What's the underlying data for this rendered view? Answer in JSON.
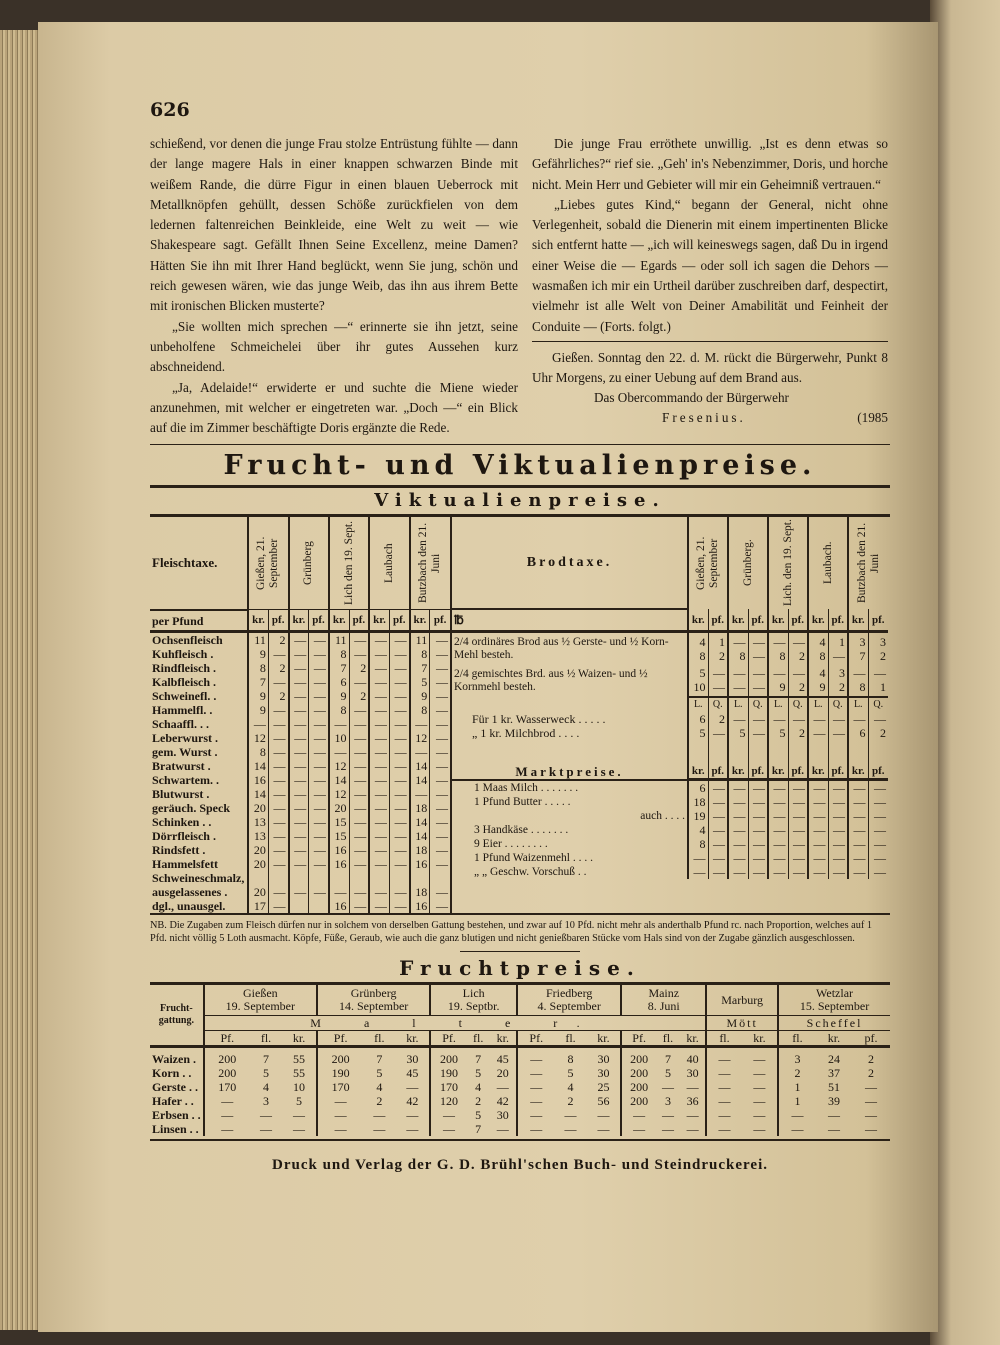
{
  "page_number": "626",
  "story": {
    "left_paragraphs": [
      "schießend, vor denen die junge Frau stolze Entrüstung fühlte — dann der lange magere Hals in einer knappen schwarzen Binde mit weißem Rande, die dürre Figur in einen blauen Ueberrock mit Metallknöpfen gehüllt, dessen Schöße zurückfielen von dem ledernen faltenreichen Beinkleide, eine Welt zu weit — wie Shakespeare sagt. Gefällt Ihnen Seine Excellenz, meine Damen? Hätten Sie ihn mit Ihrer Hand beglückt, wenn Sie jung, schön und reich gewesen wären, wie das junge Weib, das ihn aus ihrem Bette mit ironischen Blicken musterte?",
      "„Sie wollten mich sprechen —“ erinnerte sie ihn jetzt, seine unbeholfene Schmeichelei über ihr gutes Aussehen kurz abschneidend.",
      "„Ja, Adelaide!“ erwiderte er und suchte die Miene wieder anzunehmen, mit welcher er eingetreten war. „Doch —“ ein Blick auf die im Zimmer beschäftigte Doris ergänzte die Rede."
    ],
    "right_paragraphs": [
      "Die junge Frau erröthete unwillig. „Ist es denn etwas so Gefährliches?“ rief sie. „Geh' in's Nebenzimmer, Doris, und horche nicht. Mein Herr und Gebieter will mir ein Geheimniß vertrauen.“",
      "„Liebes gutes Kind,“ begann der General, nicht ohne Verlegenheit, sobald die Dienerin mit einem impertinenten Blicke sich entfernt hatte — „ich will keineswegs sagen, daß Du in irgend einer Weise die — Egards — oder soll ich sagen die Dehors — wasmaßen ich mir ein Urtheil darüber zuschreiben darf, despectirt, vielmehr ist alle Welt von Deiner Amabilität und Feinheit der Conduite — (Forts. folgt.)"
    ]
  },
  "notice": {
    "text": "Gießen. Sonntag den 22. d. M. rückt die Bürgerwehr, Punkt 8 Uhr Morgens, zu einer Uebung auf dem Brand aus.",
    "signature_line": "Das Obercommando der Bürgerwehr",
    "name": "Fresenius.",
    "number": "(1985"
  },
  "heading": "Frucht- und Viktualienpreise.",
  "subheading": "Viktualienpreise.",
  "fleisch": {
    "title": "Fleischtaxe.",
    "unit": "per Pfund",
    "places": [
      "Gießen, 21. September",
      "Grünberg",
      "Lich den 19. Sept.",
      "Laubach",
      "Butzbach den 21. Juni"
    ],
    "subcols": [
      "kr.",
      "pf."
    ],
    "rows": [
      {
        "label": "Ochsenfleisch",
        "v": [
          "11",
          "2",
          "—",
          "—",
          "11",
          "—",
          "—",
          "—",
          "11",
          "—"
        ]
      },
      {
        "label": "Kuhfleisch .",
        "v": [
          "9",
          "—",
          "—",
          "—",
          "8",
          "—",
          "—",
          "—",
          "8",
          "—"
        ]
      },
      {
        "label": "Rindfleisch .",
        "v": [
          "8",
          "2",
          "—",
          "—",
          "7",
          "2",
          "—",
          "—",
          "7",
          "—"
        ]
      },
      {
        "label": "Kalbfleisch .",
        "v": [
          "7",
          "—",
          "—",
          "—",
          "6",
          "—",
          "—",
          "—",
          "5",
          "—"
        ]
      },
      {
        "label": "Schweinefl. .",
        "v": [
          "9",
          "2",
          "—",
          "—",
          "9",
          "2",
          "—",
          "—",
          "9",
          "—"
        ]
      },
      {
        "label": "Hammelfl. .",
        "v": [
          "9",
          "—",
          "—",
          "—",
          "8",
          "—",
          "—",
          "—",
          "8",
          "—"
        ]
      },
      {
        "label": "Schaaffl. . .",
        "v": [
          "—",
          "—",
          "—",
          "—",
          "—",
          "—",
          "—",
          "—",
          "—",
          "—"
        ]
      },
      {
        "label": "Leberwurst .",
        "v": [
          "12",
          "—",
          "—",
          "—",
          "10",
          "—",
          "—",
          "—",
          "12",
          "—"
        ]
      },
      {
        "label": "gem. Wurst .",
        "v": [
          "8",
          "—",
          "—",
          "—",
          "—",
          "—",
          "—",
          "—",
          "—",
          "—"
        ]
      },
      {
        "label": "Bratwurst .",
        "v": [
          "14",
          "—",
          "—",
          "—",
          "12",
          "—",
          "—",
          "—",
          "14",
          "—"
        ]
      },
      {
        "label": "Schwartem. .",
        "v": [
          "16",
          "—",
          "—",
          "—",
          "14",
          "—",
          "—",
          "—",
          "14",
          "—"
        ]
      },
      {
        "label": "Blutwurst .",
        "v": [
          "14",
          "—",
          "—",
          "—",
          "12",
          "—",
          "—",
          "—",
          "—",
          "—"
        ]
      },
      {
        "label": "geräuch. Speck",
        "v": [
          "20",
          "—",
          "—",
          "—",
          "20",
          "—",
          "—",
          "—",
          "18",
          "—"
        ]
      },
      {
        "label": "Schinken . .",
        "v": [
          "13",
          "—",
          "—",
          "—",
          "15",
          "—",
          "—",
          "—",
          "14",
          "—"
        ]
      },
      {
        "label": "Dörrfleisch .",
        "v": [
          "13",
          "—",
          "—",
          "—",
          "15",
          "—",
          "—",
          "—",
          "14",
          "—"
        ]
      },
      {
        "label": "Rindsfett .",
        "v": [
          "20",
          "—",
          "—",
          "—",
          "16",
          "—",
          "—",
          "—",
          "18",
          "—"
        ]
      },
      {
        "label": "Hammelsfett",
        "v": [
          "20",
          "—",
          "—",
          "—",
          "16",
          "—",
          "—",
          "—",
          "16",
          "—"
        ]
      },
      {
        "label": "Schweineschmalz, ausgelassenes .",
        "v": [
          "20",
          "—",
          "—",
          "—",
          "—",
          "—",
          "—",
          "—",
          "18",
          "—"
        ]
      },
      {
        "label": "dgl., unausgel.",
        "v": [
          "17",
          "—",
          "",
          "",
          "16",
          "—",
          "—",
          "—",
          "16",
          "—"
        ]
      }
    ]
  },
  "brod": {
    "title": "Brodtaxe.",
    "unit_col": "℔",
    "places": [
      "Gießen, 21. September",
      "Grünberg.",
      "Lich. den 19. Sept.",
      "Laubach.",
      "Butzbach den 21. Juni"
    ],
    "subcols": [
      "kr.",
      "pf."
    ],
    "rows": [
      {
        "label": "2/4 ordinäres Brod aus ½ Gerste- und ½ Korn- Mehl besteh.",
        "lines": [
          [
            "4",
            "1",
            "—",
            "—",
            "—",
            "—",
            "4",
            "1",
            "3",
            "3"
          ],
          [
            "8",
            "2",
            "8",
            "—",
            "8",
            "2",
            "8",
            "—",
            "7",
            "2"
          ]
        ]
      },
      {
        "label": "2/4 gemischtes Brd. aus ½ Waizen- und ½ Kornmehl besteh.",
        "lines": [
          [
            "5",
            "—",
            "—",
            "—",
            "—",
            "—",
            "4",
            "3",
            "—",
            "—"
          ],
          [
            "10",
            "—",
            "—",
            "—",
            "9",
            "2",
            "9",
            "2",
            "8",
            "1"
          ]
        ]
      }
    ],
    "weight_units": [
      "L.",
      "Q."
    ],
    "small_rows": [
      {
        "label": "Für 1 kr. Wasserweck . . . . .",
        "v": [
          "6",
          "2",
          "—",
          "—",
          "—",
          "—",
          "—",
          "—",
          "—",
          "—"
        ]
      },
      {
        "label": "„ 1 kr. Milchbrod . . . .",
        "v": [
          "5",
          "—",
          "5",
          "—",
          "5",
          "2",
          "—",
          "—",
          "6",
          "2"
        ]
      }
    ]
  },
  "markt": {
    "title": "Marktpreise.",
    "rows": [
      {
        "label": "1 Maas Milch . . . . . . .",
        "v": [
          "6",
          "—",
          "—",
          "—",
          "—",
          "—",
          "—",
          "—",
          "—",
          "—"
        ]
      },
      {
        "label": "1 Pfund Butter . . . . .",
        "v": [
          "18",
          "—",
          "—",
          "—",
          "—",
          "—",
          "—",
          "—",
          "—",
          "—"
        ]
      },
      {
        "label": "auch . . . .",
        "v": [
          "19",
          "—",
          "—",
          "—",
          "—",
          "—",
          "—",
          "—",
          "—",
          "—"
        ]
      },
      {
        "label": "3 Handkäse . . . . . . .",
        "v": [
          "4",
          "—",
          "—",
          "—",
          "—",
          "—",
          "—",
          "—",
          "—",
          "—"
        ]
      },
      {
        "label": "9 Eier . . . . . . . .",
        "v": [
          "8",
          "—",
          "—",
          "—",
          "—",
          "—",
          "—",
          "—",
          "—",
          "—"
        ]
      },
      {
        "label": "1 Pfund Waizenmehl . . . .",
        "v": [
          "—",
          "—",
          "—",
          "—",
          "—",
          "—",
          "—",
          "—",
          "—",
          "—"
        ]
      },
      {
        "label": "„ „ Geschw. Vorschuß . .",
        "v": [
          "—",
          "—",
          "—",
          "—",
          "—",
          "—",
          "—",
          "—",
          "—",
          "—"
        ]
      }
    ]
  },
  "nb": "NB. Die Zugaben zum Fleisch dürfen nur in solchem von derselben Gattung bestehen, und zwar auf 10 Pfd. nicht mehr als anderthalb Pfund rc. nach Proportion, welches auf 1 Pfd. nicht völlig 5 Loth ausmacht. Köpfe, Füße, Geraub, wie auch die ganz blutigen und nicht genießbaren Stücke vom Hals sind von der Zugabe gänzlich ausgeschlossen.",
  "frucht": {
    "title": "Fruchtpreise.",
    "label_header": "Frucht-gattung.",
    "places": [
      {
        "name": "Gießen",
        "date": "19. September",
        "cols": [
          "Pf.",
          "fl.",
          "kr."
        ]
      },
      {
        "name": "Grünberg",
        "date": "14. September",
        "cols": [
          "Pf.",
          "fl.",
          "kr."
        ]
      },
      {
        "name": "Lich",
        "date": "19. Septbr.",
        "cols": [
          "Pf.",
          "fl.",
          "kr."
        ]
      },
      {
        "name": "Friedberg",
        "date": "4. September",
        "cols": [
          "Pf.",
          "fl.",
          "kr."
        ]
      },
      {
        "name": "Mainz",
        "date": "8. Juni",
        "cols": [
          "Pf.",
          "fl.",
          "kr."
        ]
      },
      {
        "name": "Marburg",
        "date": "",
        "cols": [
          "fl.",
          "kr."
        ]
      },
      {
        "name": "Wetzlar",
        "date": "15. September",
        "cols": [
          "fl.",
          "kr.",
          "pf."
        ]
      }
    ],
    "measures": [
      "M a l t e r.",
      "Mött",
      "Scheffel"
    ],
    "rows": [
      {
        "label": "Waizen .",
        "v": [
          "200",
          "7",
          "55",
          "200",
          "7",
          "30",
          "200",
          "7",
          "45",
          "—",
          "8",
          "30",
          "200",
          "7",
          "40",
          "—",
          "—",
          "3",
          "24",
          "2"
        ]
      },
      {
        "label": "Korn . .",
        "v": [
          "200",
          "5",
          "55",
          "190",
          "5",
          "45",
          "190",
          "5",
          "20",
          "—",
          "5",
          "30",
          "200",
          "5",
          "30",
          "—",
          "—",
          "2",
          "37",
          "2"
        ]
      },
      {
        "label": "Gerste . .",
        "v": [
          "170",
          "4",
          "10",
          "170",
          "4",
          "—",
          "170",
          "4",
          "—",
          "—",
          "4",
          "25",
          "200",
          "—",
          "—",
          "—",
          "—",
          "1",
          "51",
          "—"
        ]
      },
      {
        "label": "Hafer . .",
        "v": [
          "—",
          "3",
          "5",
          "—",
          "2",
          "42",
          "120",
          "2",
          "42",
          "—",
          "2",
          "56",
          "200",
          "3",
          "36",
          "—",
          "—",
          "1",
          "39",
          "—"
        ]
      },
      {
        "label": "Erbsen . .",
        "v": [
          "—",
          "—",
          "—",
          "—",
          "—",
          "—",
          "—",
          "5",
          "30",
          "—",
          "—",
          "—",
          "—",
          "—",
          "—",
          "—",
          "—",
          "—",
          "—",
          "—"
        ]
      },
      {
        "label": "Linsen . .",
        "v": [
          "—",
          "—",
          "—",
          "—",
          "—",
          "—",
          "—",
          "7",
          "—",
          "—",
          "—",
          "—",
          "—",
          "—",
          "—",
          "—",
          "—",
          "—",
          "—",
          "—"
        ]
      }
    ]
  },
  "footer": "Druck und Verlag der G. D. Brühl'schen Buch- und Steindruckerei."
}
